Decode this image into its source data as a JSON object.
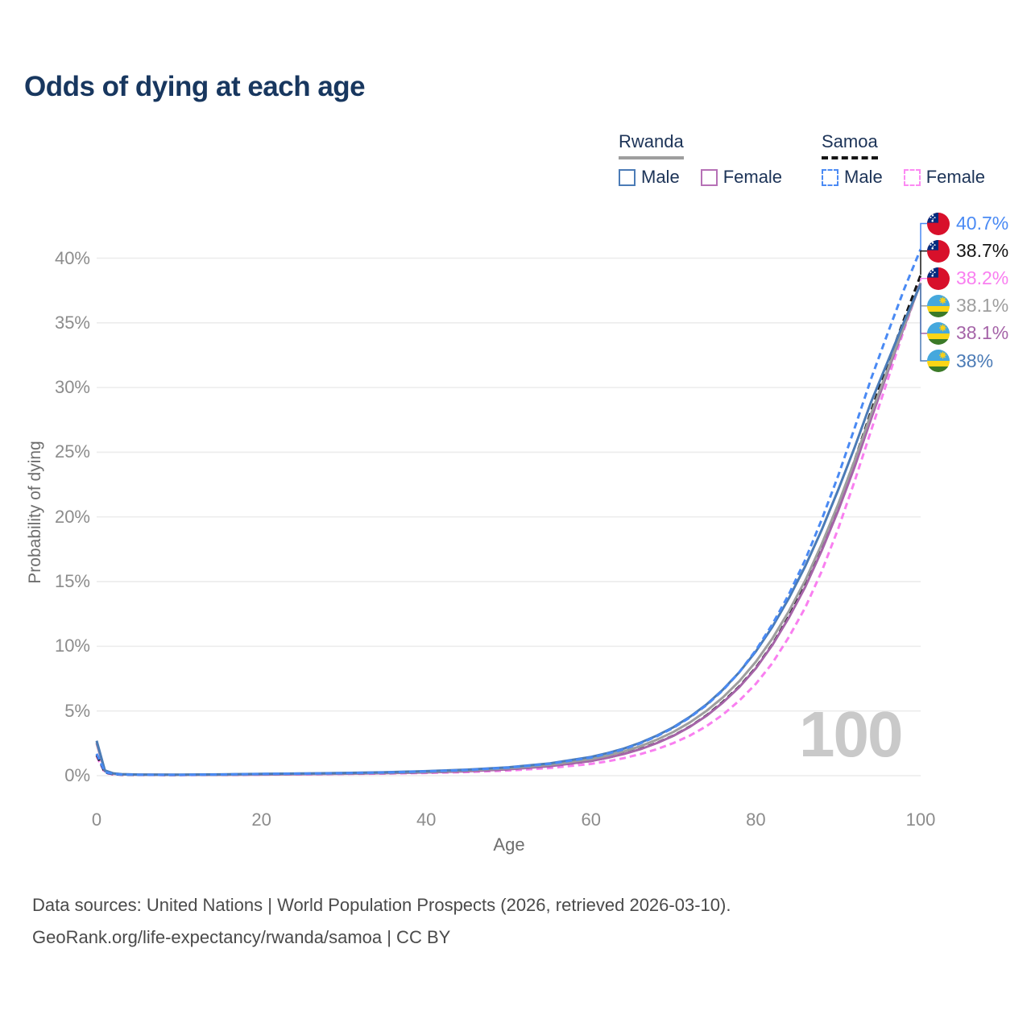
{
  "title": "Odds of dying at each age",
  "legend": {
    "groups": [
      {
        "country": "Rwanda",
        "underline_style": "solid",
        "underline_color": "#9e9e9e",
        "items": [
          {
            "label": "Male",
            "color": "#4b7bb6",
            "dash": false
          },
          {
            "label": "Female",
            "color": "#b671b6",
            "dash": false
          }
        ]
      },
      {
        "country": "Samoa",
        "underline_style": "dashed",
        "underline_color": "#161616",
        "items": [
          {
            "label": "Male",
            "color": "#4a8af4",
            "dash": true
          },
          {
            "label": "Female",
            "color": "#fc8af3",
            "dash": true
          }
        ]
      }
    ]
  },
  "chart_data": {
    "type": "line",
    "title": "Odds of dying at each age",
    "xlabel": "Age",
    "ylabel": "Probability of dying",
    "xlim": [
      0,
      100
    ],
    "ylim": [
      0,
      42
    ],
    "grid": "horizontal-only",
    "gridline_color": "#ececec",
    "x_ticks": [
      "0",
      "20",
      "40",
      "60",
      "80",
      "100"
    ],
    "x_tick_values": [
      0,
      20,
      40,
      60,
      80,
      100
    ],
    "y_ticks": [
      "0%",
      "5%",
      "10%",
      "15%",
      "20%",
      "25%",
      "30%",
      "35%",
      "40%"
    ],
    "y_tick_values": [
      0,
      5,
      10,
      15,
      20,
      25,
      30,
      35,
      40
    ],
    "age_marker_label": "100",
    "x": [
      0,
      1,
      2,
      3,
      5,
      10,
      15,
      20,
      25,
      30,
      35,
      40,
      45,
      50,
      55,
      60,
      62,
      64,
      66,
      68,
      70,
      72,
      74,
      76,
      78,
      80,
      82,
      84,
      86,
      88,
      90,
      92,
      94,
      96,
      98,
      100
    ],
    "series": [
      {
        "name": "Samoa Female",
        "country": "Samoa",
        "sex": "Female",
        "style": "dashed",
        "color": "#f97ff0",
        "flag": "samoa",
        "end_label": "38.2%",
        "end_value": 38.2,
        "label_row": 2,
        "values": [
          1.5,
          0.22,
          0.1,
          0.07,
          0.055,
          0.045,
          0.06,
          0.08,
          0.1,
          0.13,
          0.16,
          0.21,
          0.28,
          0.4,
          0.59,
          0.91,
          1.11,
          1.36,
          1.67,
          2.05,
          2.52,
          3.1,
          3.82,
          4.72,
          5.8,
          7.1,
          8.7,
          10.7,
          13.0,
          15.8,
          19.1,
          22.8,
          26.7,
          30.6,
          34.5,
          38.2
        ]
      },
      {
        "name": "Samoa",
        "country": "Samoa",
        "sex": "Both",
        "style": "dashed",
        "color": "#161616",
        "flag": "samoa",
        "end_label": "38.7%",
        "end_value": 38.7,
        "label_row": 1,
        "values": [
          1.6,
          0.25,
          0.12,
          0.08,
          0.065,
          0.055,
          0.075,
          0.1,
          0.13,
          0.16,
          0.2,
          0.26,
          0.35,
          0.5,
          0.74,
          1.14,
          1.39,
          1.7,
          2.07,
          2.54,
          3.1,
          3.8,
          4.65,
          5.7,
          6.9,
          8.35,
          10.15,
          12.3,
          14.8,
          17.7,
          20.9,
          24.4,
          28.2,
          31.8,
          35.3,
          38.7
        ]
      },
      {
        "name": "Rwanda Female",
        "country": "Rwanda",
        "sex": "Female",
        "style": "solid",
        "color": "#a564a8",
        "flag": "rwanda",
        "end_label": "38.1%",
        "end_value": 38.1,
        "label_row": 4,
        "values": [
          2.5,
          0.35,
          0.15,
          0.1,
          0.08,
          0.06,
          0.07,
          0.09,
          0.12,
          0.15,
          0.19,
          0.25,
          0.34,
          0.49,
          0.73,
          1.13,
          1.38,
          1.68,
          2.05,
          2.52,
          3.08,
          3.78,
          4.62,
          5.65,
          6.85,
          8.3,
          10.1,
          12.2,
          14.6,
          17.4,
          20.5,
          23.9,
          27.6,
          31.2,
          34.7,
          38.1
        ]
      },
      {
        "name": "Rwanda",
        "country": "Rwanda",
        "sex": "Both",
        "style": "solid",
        "color": "#9e9e9e",
        "flag": "rwanda",
        "end_label": "38.1%",
        "end_value": 38.1,
        "label_row": 3,
        "values": [
          2.6,
          0.38,
          0.17,
          0.11,
          0.085,
          0.07,
          0.09,
          0.12,
          0.15,
          0.18,
          0.23,
          0.3,
          0.41,
          0.57,
          0.84,
          1.28,
          1.55,
          1.88,
          2.28,
          2.78,
          3.38,
          4.12,
          5.0,
          6.05,
          7.3,
          8.8,
          10.6,
          12.7,
          15.1,
          17.9,
          21.0,
          24.4,
          28.0,
          31.4,
          34.8,
          38.1
        ]
      },
      {
        "name": "Rwanda Male",
        "country": "Rwanda",
        "sex": "Male",
        "style": "solid",
        "color": "#4b7bb6",
        "flag": "rwanda",
        "end_label": "38%",
        "end_value": 38.0,
        "label_row": 5,
        "values": [
          2.7,
          0.4,
          0.18,
          0.12,
          0.09,
          0.08,
          0.1,
          0.14,
          0.17,
          0.21,
          0.27,
          0.35,
          0.47,
          0.65,
          0.95,
          1.45,
          1.75,
          2.1,
          2.55,
          3.1,
          3.75,
          4.55,
          5.5,
          6.65,
          8.0,
          9.6,
          11.5,
          13.7,
          16.2,
          19.0,
          22.1,
          25.4,
          28.9,
          32.0,
          35.1,
          38.0
        ]
      },
      {
        "name": "Samoa Male",
        "country": "Samoa",
        "sex": "Male",
        "style": "dashed",
        "color": "#4a8af4",
        "flag": "samoa",
        "end_label": "40.7%",
        "end_value": 40.7,
        "label_row": 0,
        "values": [
          1.7,
          0.28,
          0.13,
          0.09,
          0.07,
          0.06,
          0.09,
          0.13,
          0.16,
          0.2,
          0.25,
          0.33,
          0.44,
          0.62,
          0.92,
          1.4,
          1.7,
          2.05,
          2.5,
          3.05,
          3.7,
          4.5,
          5.45,
          6.6,
          8.0,
          9.7,
          11.7,
          14.0,
          16.7,
          19.8,
          23.2,
          26.9,
          30.7,
          34.2,
          37.6,
          40.7
        ]
      }
    ],
    "flag_colors": {
      "samoa": {
        "field": "#d8102b",
        "canton": "#032b7e",
        "stars": "#ffffff"
      },
      "rwanda": {
        "blue": "#45a8dd",
        "yellow": "#fad516",
        "green": "#3b7a28",
        "sun": "#fcd116"
      }
    }
  },
  "footer": {
    "line1": "Data sources: United Nations | World Population Prospects (2026, retrieved 2026-03-10).",
    "line2": "GeoRank.org/life-expectancy/rwanda/samoa | CC BY"
  }
}
